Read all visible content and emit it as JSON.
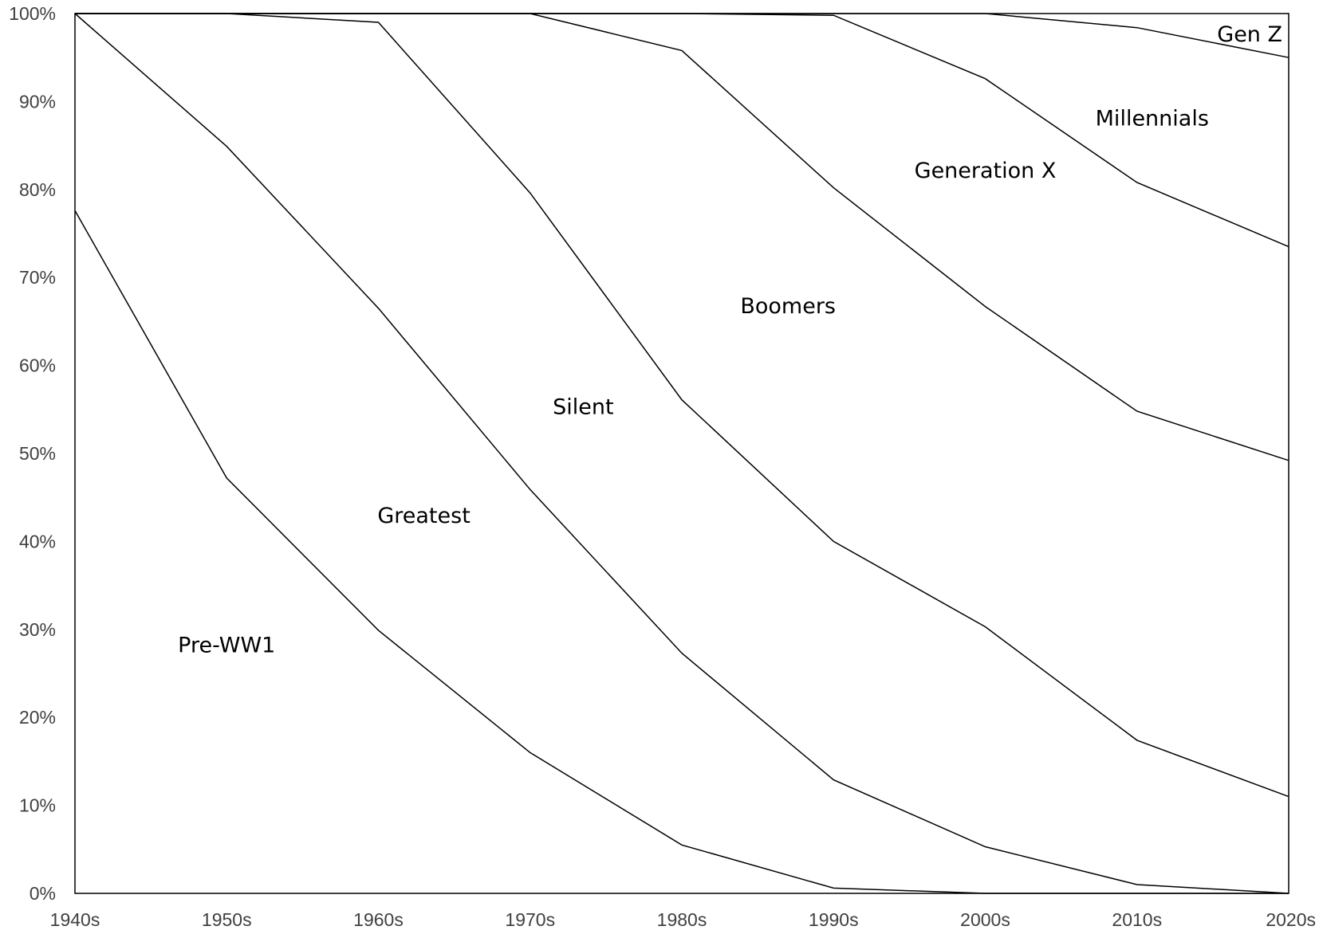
{
  "chart_data": {
    "type": "area",
    "stacked": true,
    "percent": true,
    "title": "",
    "xlabel": "",
    "ylabel": "",
    "x": [
      "1940s",
      "1950s",
      "1960s",
      "1970s",
      "1980s",
      "1990s",
      "2000s",
      "2010s",
      "2020s"
    ],
    "y_ticks": [
      "0%",
      "10%",
      "20%",
      "30%",
      "40%",
      "50%",
      "60%",
      "70%",
      "80%",
      "90%",
      "100%"
    ],
    "ylim": [
      0,
      100
    ],
    "grid": false,
    "legend": "none",
    "series": [
      {
        "name": "Pre-WW1",
        "values": [
          77.6,
          47.2,
          29.9,
          16.0,
          5.5,
          0.6,
          0.0,
          0.0,
          0.0
        ]
      },
      {
        "name": "Greatest",
        "values": [
          22.4,
          37.7,
          36.6,
          29.9,
          21.8,
          12.3,
          5.3,
          1.0,
          0.0
        ]
      },
      {
        "name": "Silent",
        "values": [
          0.0,
          15.1,
          32.5,
          33.7,
          28.8,
          27.1,
          25.0,
          16.4,
          11.0
        ]
      },
      {
        "name": "Boomers",
        "values": [
          0.0,
          0.0,
          1.0,
          20.4,
          39.7,
          40.2,
          36.4,
          37.4,
          38.2
        ]
      },
      {
        "name": "Generation X",
        "values": [
          0.0,
          0.0,
          0.0,
          0.0,
          4.6,
          19.6,
          25.9,
          26.0,
          24.3
        ]
      },
      {
        "name": "Millennials",
        "values": [
          0.0,
          0.0,
          0.0,
          0.0,
          0.0,
          0.2,
          7.4,
          17.6,
          21.5
        ]
      },
      {
        "name": "Gen Z",
        "values": [
          0.0,
          0.0,
          0.0,
          0.0,
          0.0,
          0.0,
          0.0,
          1.6,
          5.0
        ]
      }
    ]
  }
}
